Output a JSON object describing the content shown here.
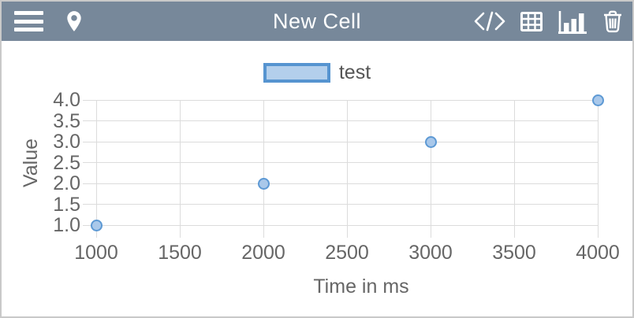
{
  "header": {
    "title": "New Cell",
    "background": "#77889A",
    "left_icons": [
      {
        "name": "menu-icon"
      },
      {
        "name": "location-pin-icon"
      }
    ],
    "right_icons": [
      {
        "name": "code-icon"
      },
      {
        "name": "table-icon"
      },
      {
        "name": "bar-chart-icon"
      },
      {
        "name": "trash-icon"
      }
    ]
  },
  "chart_data": {
    "type": "scatter",
    "series": [
      {
        "name": "test",
        "x": [
          1000,
          2000,
          3000,
          4000
        ],
        "y": [
          1.0,
          2.0,
          3.0,
          4.0
        ]
      }
    ],
    "xlabel": "Time in ms",
    "ylabel": "Value",
    "xlim": [
      1000,
      4000
    ],
    "ylim": [
      1.0,
      4.0
    ],
    "x_ticks": [
      {
        "v": 1000,
        "label": "1000"
      },
      {
        "v": 1500,
        "label": "1500"
      },
      {
        "v": 2000,
        "label": "2000"
      },
      {
        "v": 2500,
        "label": "2500"
      },
      {
        "v": 3000,
        "label": "3000"
      },
      {
        "v": 3500,
        "label": "3500"
      },
      {
        "v": 4000,
        "label": "4000"
      }
    ],
    "y_ticks": [
      {
        "v": 4.0,
        "label": "4.0"
      },
      {
        "v": 3.5,
        "label": "3.5"
      },
      {
        "v": 3.0,
        "label": "3.0"
      },
      {
        "v": 2.5,
        "label": "2.5"
      },
      {
        "v": 2.0,
        "label": "2.0"
      },
      {
        "v": 1.5,
        "label": "1.5"
      },
      {
        "v": 1.0,
        "label": "1.0"
      }
    ],
    "grid": true,
    "legend_position": "top-center",
    "colors": {
      "point_fill": "#a9c8ea",
      "point_stroke": "#5d99d4",
      "legend_fill": "#b3cfec",
      "legend_stroke": "#5694d0",
      "grid": "#dcdcdc",
      "text": "#666666"
    }
  }
}
